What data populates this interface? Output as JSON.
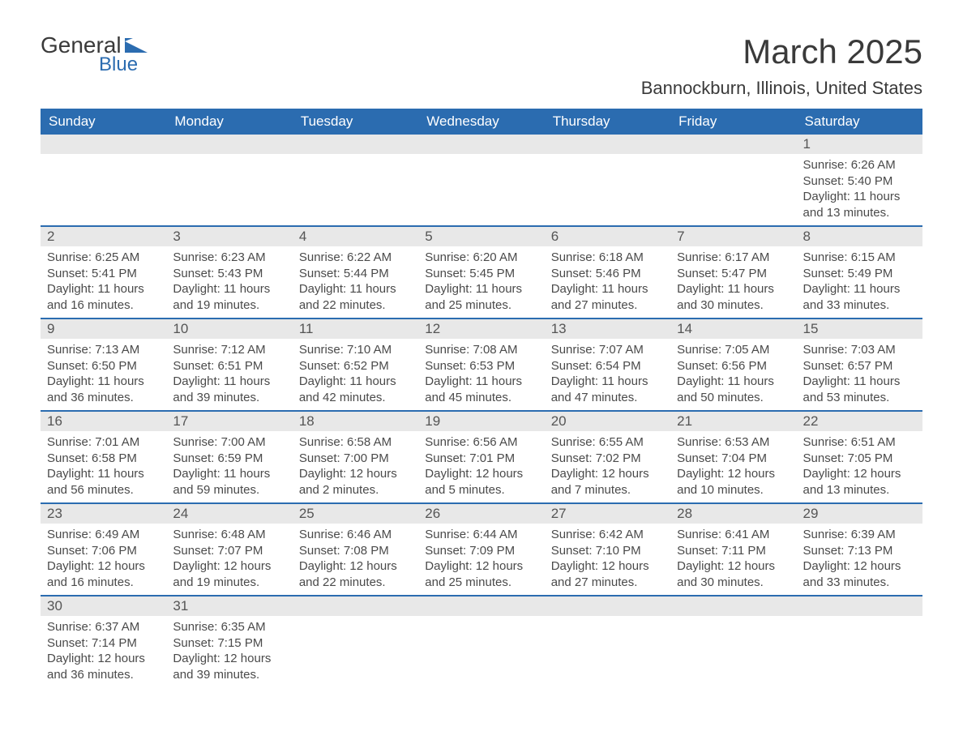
{
  "logo": {
    "text1": "General",
    "text2": "Blue",
    "brand_color": "#2b6cb0"
  },
  "title": "March 2025",
  "location": "Bannockburn, Illinois, United States",
  "colors": {
    "header_bg": "#2b6cb0",
    "header_text": "#ffffff",
    "daynum_bg": "#e8e8e8",
    "row_divider": "#2b6cb0",
    "body_text": "#4a4a4a",
    "page_bg": "#ffffff"
  },
  "day_headers": [
    "Sunday",
    "Monday",
    "Tuesday",
    "Wednesday",
    "Thursday",
    "Friday",
    "Saturday"
  ],
  "first_weekday": 6,
  "days": [
    {
      "n": 1,
      "sr": "6:26 AM",
      "ss": "5:40 PM",
      "dl": "11 hours and 13 minutes."
    },
    {
      "n": 2,
      "sr": "6:25 AM",
      "ss": "5:41 PM",
      "dl": "11 hours and 16 minutes."
    },
    {
      "n": 3,
      "sr": "6:23 AM",
      "ss": "5:43 PM",
      "dl": "11 hours and 19 minutes."
    },
    {
      "n": 4,
      "sr": "6:22 AM",
      "ss": "5:44 PM",
      "dl": "11 hours and 22 minutes."
    },
    {
      "n": 5,
      "sr": "6:20 AM",
      "ss": "5:45 PM",
      "dl": "11 hours and 25 minutes."
    },
    {
      "n": 6,
      "sr": "6:18 AM",
      "ss": "5:46 PM",
      "dl": "11 hours and 27 minutes."
    },
    {
      "n": 7,
      "sr": "6:17 AM",
      "ss": "5:47 PM",
      "dl": "11 hours and 30 minutes."
    },
    {
      "n": 8,
      "sr": "6:15 AM",
      "ss": "5:49 PM",
      "dl": "11 hours and 33 minutes."
    },
    {
      "n": 9,
      "sr": "7:13 AM",
      "ss": "6:50 PM",
      "dl": "11 hours and 36 minutes."
    },
    {
      "n": 10,
      "sr": "7:12 AM",
      "ss": "6:51 PM",
      "dl": "11 hours and 39 minutes."
    },
    {
      "n": 11,
      "sr": "7:10 AM",
      "ss": "6:52 PM",
      "dl": "11 hours and 42 minutes."
    },
    {
      "n": 12,
      "sr": "7:08 AM",
      "ss": "6:53 PM",
      "dl": "11 hours and 45 minutes."
    },
    {
      "n": 13,
      "sr": "7:07 AM",
      "ss": "6:54 PM",
      "dl": "11 hours and 47 minutes."
    },
    {
      "n": 14,
      "sr": "7:05 AM",
      "ss": "6:56 PM",
      "dl": "11 hours and 50 minutes."
    },
    {
      "n": 15,
      "sr": "7:03 AM",
      "ss": "6:57 PM",
      "dl": "11 hours and 53 minutes."
    },
    {
      "n": 16,
      "sr": "7:01 AM",
      "ss": "6:58 PM",
      "dl": "11 hours and 56 minutes."
    },
    {
      "n": 17,
      "sr": "7:00 AM",
      "ss": "6:59 PM",
      "dl": "11 hours and 59 minutes."
    },
    {
      "n": 18,
      "sr": "6:58 AM",
      "ss": "7:00 PM",
      "dl": "12 hours and 2 minutes."
    },
    {
      "n": 19,
      "sr": "6:56 AM",
      "ss": "7:01 PM",
      "dl": "12 hours and 5 minutes."
    },
    {
      "n": 20,
      "sr": "6:55 AM",
      "ss": "7:02 PM",
      "dl": "12 hours and 7 minutes."
    },
    {
      "n": 21,
      "sr": "6:53 AM",
      "ss": "7:04 PM",
      "dl": "12 hours and 10 minutes."
    },
    {
      "n": 22,
      "sr": "6:51 AM",
      "ss": "7:05 PM",
      "dl": "12 hours and 13 minutes."
    },
    {
      "n": 23,
      "sr": "6:49 AM",
      "ss": "7:06 PM",
      "dl": "12 hours and 16 minutes."
    },
    {
      "n": 24,
      "sr": "6:48 AM",
      "ss": "7:07 PM",
      "dl": "12 hours and 19 minutes."
    },
    {
      "n": 25,
      "sr": "6:46 AM",
      "ss": "7:08 PM",
      "dl": "12 hours and 22 minutes."
    },
    {
      "n": 26,
      "sr": "6:44 AM",
      "ss": "7:09 PM",
      "dl": "12 hours and 25 minutes."
    },
    {
      "n": 27,
      "sr": "6:42 AM",
      "ss": "7:10 PM",
      "dl": "12 hours and 27 minutes."
    },
    {
      "n": 28,
      "sr": "6:41 AM",
      "ss": "7:11 PM",
      "dl": "12 hours and 30 minutes."
    },
    {
      "n": 29,
      "sr": "6:39 AM",
      "ss": "7:13 PM",
      "dl": "12 hours and 33 minutes."
    },
    {
      "n": 30,
      "sr": "6:37 AM",
      "ss": "7:14 PM",
      "dl": "12 hours and 36 minutes."
    },
    {
      "n": 31,
      "sr": "6:35 AM",
      "ss": "7:15 PM",
      "dl": "12 hours and 39 minutes."
    }
  ],
  "labels": {
    "sunrise": "Sunrise:",
    "sunset": "Sunset:",
    "daylight": "Daylight:"
  }
}
